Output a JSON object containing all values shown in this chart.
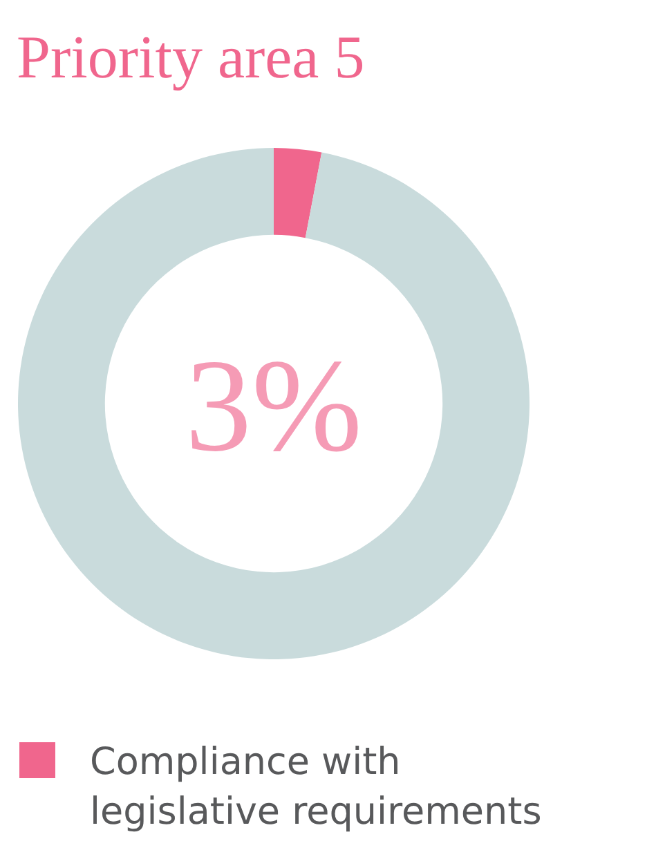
{
  "chart_data": {
    "type": "donut",
    "title": "Priority area 5",
    "categories": [
      "Compliance with legislative requirements",
      null
    ],
    "values": [
      3,
      97
    ],
    "colors": [
      "#f0668d",
      "#c9dbdc"
    ],
    "annotations": [
      "3%"
    ],
    "legend": "bottom"
  }
}
